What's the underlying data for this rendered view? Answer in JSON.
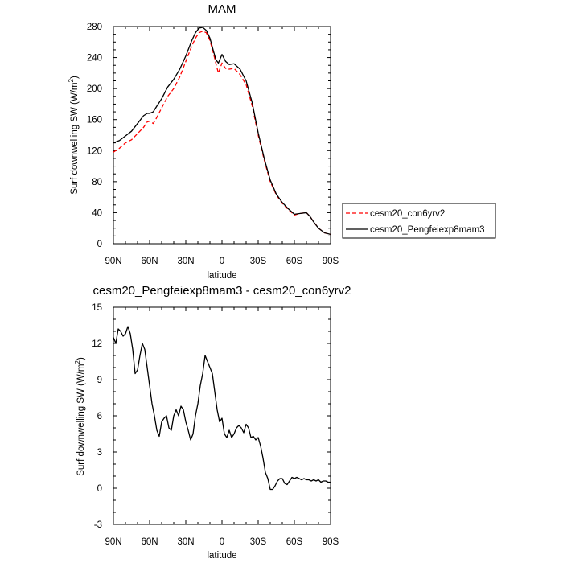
{
  "chart_data": [
    {
      "type": "line",
      "title": "MAM",
      "xlabel": "latitude",
      "ylabel_main": "Surf downwelling SW (W/m",
      "ylabel_sup": "2",
      "ylabel_close": ")",
      "xlim": [
        90,
        -90
      ],
      "ylim": [
        0,
        280
      ],
      "xticks": [
        90,
        60,
        30,
        0,
        -30,
        -60,
        -90
      ],
      "xtick_labels": [
        "90N",
        "60N",
        "30N",
        "0",
        "30S",
        "60S",
        "90S"
      ],
      "yticks": [
        0,
        40,
        80,
        120,
        160,
        200,
        240,
        280
      ],
      "ytick_labels": [
        "0",
        "40",
        "80",
        "120",
        "160",
        "200",
        "240",
        "280"
      ],
      "legend": {
        "position": "right",
        "entries": [
          "cesm20_con6yrv2",
          "cesm20_Pengfeiexp8mam3"
        ]
      },
      "series": [
        {
          "name": "cesm20_con6yrv2",
          "color": "#ff0000",
          "style": "dashed",
          "x": [
            90,
            85,
            80,
            75,
            70,
            65,
            62,
            60,
            57,
            55,
            50,
            45,
            40,
            35,
            30,
            25,
            22,
            19,
            16,
            13,
            10,
            7,
            5,
            3,
            0,
            -3,
            -6,
            -10,
            -15,
            -20,
            -25,
            -30,
            -35,
            -40,
            -45,
            -50,
            -55,
            -60,
            -65,
            -70,
            -73,
            -76,
            -80,
            -85,
            -90
          ],
          "values": [
            118,
            123,
            130,
            134,
            142,
            150,
            157,
            158,
            155,
            160,
            175,
            190,
            200,
            215,
            235,
            255,
            265,
            272,
            274,
            272,
            262,
            245,
            232,
            220,
            233,
            226,
            225,
            226,
            218,
            205,
            178,
            140,
            108,
            80,
            63,
            52,
            44,
            37,
            39,
            40,
            35,
            28,
            20,
            14,
            12
          ]
        },
        {
          "name": "cesm20_Pengfeiexp8mam3",
          "color": "#000000",
          "style": "solid",
          "x": [
            90,
            85,
            80,
            75,
            70,
            65,
            62,
            60,
            57,
            55,
            50,
            45,
            40,
            35,
            30,
            25,
            22,
            19,
            16,
            13,
            10,
            7,
            5,
            3,
            0,
            -3,
            -6,
            -10,
            -15,
            -20,
            -25,
            -30,
            -35,
            -40,
            -45,
            -50,
            -55,
            -60,
            -65,
            -70,
            -73,
            -76,
            -80,
            -85,
            -90
          ],
          "values": [
            130,
            133,
            139,
            145,
            155,
            165,
            168,
            168,
            170,
            175,
            187,
            202,
            212,
            225,
            242,
            262,
            272,
            278,
            279,
            275,
            265,
            248,
            237,
            233,
            244,
            235,
            231,
            232,
            225,
            210,
            182,
            143,
            110,
            82,
            64,
            53,
            45,
            38,
            39,
            40,
            35,
            28,
            20,
            14,
            12
          ]
        }
      ]
    },
    {
      "type": "line",
      "title": "cesm20_Pengfeiexp8mam3 - cesm20_con6yrv2",
      "xlabel": "latitude",
      "ylabel_main": "Surf downwelling SW (W/m",
      "ylabel_sup": "2",
      "ylabel_close": ")",
      "xlim": [
        90,
        -90
      ],
      "ylim": [
        -3,
        15
      ],
      "xticks": [
        90,
        60,
        30,
        0,
        -30,
        -60,
        -90
      ],
      "xtick_labels": [
        "90N",
        "60N",
        "30N",
        "0",
        "30S",
        "60S",
        "90S"
      ],
      "yticks": [
        -3,
        0,
        3,
        6,
        9,
        12,
        15
      ],
      "ytick_labels": [
        "-3",
        "0",
        "3",
        "6",
        "9",
        "12",
        "15"
      ],
      "series": [
        {
          "name": "cesm20_Pengfeiexp8mam3 - cesm20_con6yrv2",
          "color": "#000000",
          "style": "solid",
          "x": [
            90,
            88,
            86,
            84,
            82,
            80,
            78,
            76,
            74,
            72,
            70,
            68,
            66,
            64,
            62,
            60,
            58,
            56,
            54,
            52,
            50,
            48,
            46,
            44,
            42,
            40,
            38,
            36,
            34,
            32,
            30,
            28,
            26,
            24,
            22,
            20,
            18,
            16,
            14,
            12,
            10,
            8,
            6,
            4,
            2,
            0,
            -2,
            -4,
            -6,
            -8,
            -10,
            -12,
            -14,
            -16,
            -18,
            -20,
            -22,
            -24,
            -26,
            -28,
            -30,
            -32,
            -34,
            -36,
            -38,
            -40,
            -42,
            -44,
            -46,
            -48,
            -50,
            -52,
            -54,
            -56,
            -58,
            -60,
            -62,
            -64,
            -66,
            -68,
            -70,
            -72,
            -74,
            -76,
            -78,
            -80,
            -82,
            -84,
            -86,
            -88,
            -90
          ],
          "values": [
            12.5,
            12.0,
            13.2,
            13.0,
            12.6,
            12.8,
            13.4,
            12.8,
            11.5,
            9.5,
            9.8,
            11.0,
            12.0,
            11.5,
            10.0,
            8.5,
            7.0,
            6.0,
            4.8,
            4.3,
            5.5,
            5.8,
            6.0,
            5.0,
            4.8,
            6.0,
            6.5,
            6.0,
            6.8,
            6.5,
            5.5,
            4.8,
            4.0,
            4.5,
            6.0,
            7.0,
            8.5,
            9.5,
            11.0,
            10.5,
            10.0,
            9.5,
            8.0,
            6.5,
            5.5,
            5.8,
            4.5,
            4.2,
            4.8,
            4.2,
            4.5,
            5.0,
            5.2,
            5.0,
            4.6,
            5.3,
            5.0,
            4.2,
            4.3,
            4.0,
            4.2,
            3.5,
            2.5,
            1.3,
            0.8,
            -0.1,
            -0.1,
            0.2,
            0.6,
            0.8,
            0.8,
            0.4,
            0.3,
            0.6,
            0.9,
            0.8,
            0.9,
            0.8,
            0.7,
            0.8,
            0.7,
            0.7,
            0.6,
            0.7,
            0.6,
            0.7,
            0.5,
            0.6,
            0.6,
            0.5,
            0.5
          ]
        }
      ]
    }
  ]
}
